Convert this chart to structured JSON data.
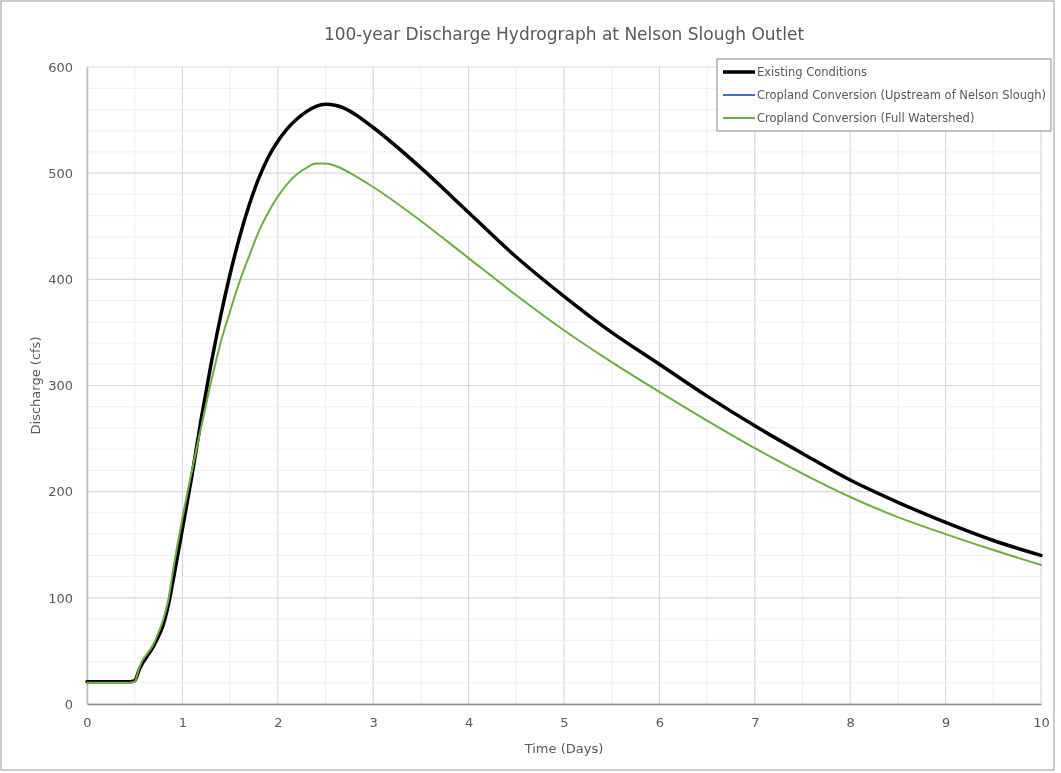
{
  "chart_data": {
    "type": "line",
    "title": "100-year Discharge Hydrograph at Nelson Slough Outlet",
    "xlabel": "Time (Days)",
    "ylabel": "Discharge (cfs)",
    "x": [
      0,
      0.45,
      0.5,
      0.55,
      0.7,
      0.8,
      0.85,
      0.9,
      1.0,
      1.1,
      1.2,
      1.3,
      1.4,
      1.5,
      1.6,
      1.7,
      1.8,
      1.9,
      2.0,
      2.1,
      2.2,
      2.3,
      2.4,
      2.5,
      2.6,
      2.7,
      2.8,
      3.0,
      3.5,
      4.0,
      4.5,
      5.0,
      5.5,
      6.0,
      6.5,
      7.0,
      7.5,
      8.0,
      8.5,
      9.0,
      9.5,
      10
    ],
    "series": [
      {
        "name": "Existing Conditions",
        "color": "#000000",
        "values": [
          21,
          21,
          22,
          33,
          55,
          75,
          92,
          115,
          165,
          215,
          270,
          320,
          365,
          405,
          440,
          470,
          495,
          515,
          530,
          542,
          551,
          558,
          563,
          565,
          564,
          561,
          556,
          543,
          505,
          463,
          421,
          384,
          350,
          320,
          290,
          262,
          236,
          211,
          190,
          171,
          154,
          140
        ]
      },
      {
        "name": "Cropland Conversion (Upstream of Nelson Slough)",
        "color": "#4472c4",
        "values": [
          null,
          null,
          null,
          null,
          null,
          null,
          null,
          null,
          null,
          null,
          null,
          null,
          null,
          null,
          null,
          null,
          null,
          null,
          null,
          null,
          null,
          null,
          null,
          null,
          null,
          null,
          null,
          null,
          null,
          null,
          null,
          null,
          null,
          null,
          null,
          null,
          null,
          null,
          null,
          null,
          null,
          null
        ]
      },
      {
        "name": "Cropland Conversion (Full Watershed)",
        "color": "#70ad47",
        "values": [
          20,
          20,
          21,
          35,
          57,
          80,
          97,
          125,
          175,
          220,
          262,
          303,
          340,
          370,
          398,
          422,
          445,
          463,
          478,
          490,
          499,
          505,
          509,
          509,
          507,
          503,
          498,
          487,
          455,
          420,
          385,
          352,
          322,
          294,
          267,
          241,
          217,
          195,
          176,
          160,
          145,
          131
        ]
      }
    ],
    "xlim": [
      0,
      10
    ],
    "xticks": [
      0,
      {
        "value": 0.5,
        "label": null
      },
      1,
      {
        "value": 1.5,
        "label": null
      },
      2,
      {
        "value": 2.5,
        "label": null
      },
      3,
      {
        "value": 3.5,
        "label": null
      },
      4,
      {
        "value": 4.5,
        "label": null
      },
      5,
      {
        "value": 5.5,
        "label": null
      },
      6,
      {
        "value": 6.5,
        "label": null
      },
      7,
      {
        "value": 7.5,
        "label": null
      },
      8,
      {
        "value": 8.5,
        "label": null
      },
      9,
      {
        "value": 9.5,
        "label": null
      },
      10
    ],
    "ylim": [
      0,
      600
    ],
    "yticks": [
      0,
      {
        "value": 20,
        "label": null
      },
      {
        "value": 40,
        "label": null
      },
      {
        "value": 60,
        "label": null
      },
      {
        "value": 80,
        "label": null
      },
      100,
      {
        "value": 120,
        "label": null
      },
      {
        "value": 140,
        "label": null
      },
      {
        "value": 160,
        "label": null
      },
      {
        "value": 180,
        "label": null
      },
      200,
      {
        "value": 220,
        "label": null
      },
      {
        "value": 240,
        "label": null
      },
      {
        "value": 260,
        "label": null
      },
      {
        "value": 280,
        "label": null
      },
      300,
      {
        "value": 320,
        "label": null
      },
      {
        "value": 340,
        "label": null
      },
      {
        "value": 360,
        "label": null
      },
      {
        "value": 380,
        "label": null
      },
      400,
      {
        "value": 420,
        "label": null
      },
      {
        "value": 440,
        "label": null
      },
      {
        "value": 460,
        "label": null
      },
      {
        "value": 480,
        "label": null
      },
      500,
      {
        "value": 520,
        "label": null
      },
      {
        "value": 540,
        "label": null
      },
      {
        "value": 560,
        "label": null
      },
      {
        "value": 580,
        "label": null
      },
      600
    ],
    "grid": true,
    "legend": "top right",
    "line_style": "solid"
  }
}
